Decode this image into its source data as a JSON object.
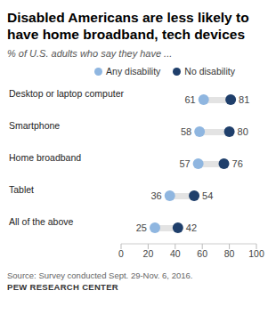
{
  "chart_data": {
    "type": "dot",
    "title": "Disabled Americans are less likely to have home broadband, tech devices",
    "subtitle": "% of U.S. adults who say they have ...",
    "categories": [
      "Desktop or laptop computer",
      "Smartphone",
      "Home broadband",
      "Tablet",
      "All of the above"
    ],
    "series": [
      {
        "name": "Any disability",
        "color": "#8fb6e0",
        "values": [
          61,
          58,
          57,
          36,
          25
        ]
      },
      {
        "name": "No disability",
        "color": "#1f3f6b",
        "values": [
          81,
          80,
          76,
          54,
          42
        ]
      }
    ],
    "xlim": [
      0,
      100
    ],
    "xticks": [
      0,
      20,
      40,
      60,
      80,
      100
    ],
    "orientation": "horizontal",
    "data_labels": true,
    "legend": "top",
    "source": "Source: Survey conducted Sept. 29-Nov. 6, 2016.",
    "credit": "PEW RESEARCH CENTER"
  }
}
